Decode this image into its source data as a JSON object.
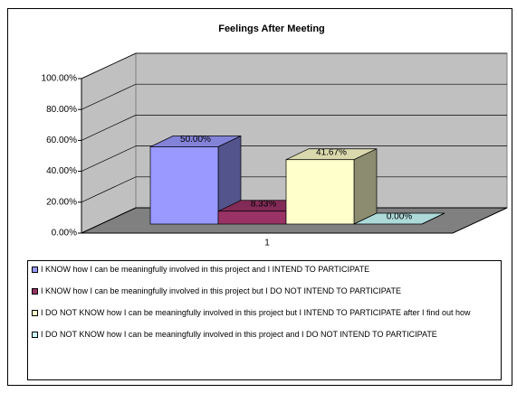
{
  "chart_data": {
    "type": "bar3d",
    "title": "Feelings After Meeting",
    "categories": [
      "1"
    ],
    "series": [
      {
        "name": "I KNOW how I can be meaningfully involved in this project and I INTEND TO PARTICIPATE",
        "color": "#9999ff",
        "values": [
          50
        ],
        "value_labels": [
          "50.00%"
        ]
      },
      {
        "name": "I KNOW how I can be meaningfully involved in this project but I DO NOT INTEND TO PARTICIPATE",
        "color": "#993366",
        "values": [
          8.33
        ],
        "value_labels": [
          "8.33%"
        ]
      },
      {
        "name": "I DO NOT KNOW how I can be meaningfully involved in this project but I INTEND TO PARTICIPATE after I find out how",
        "color": "#ffffcc",
        "values": [
          41.67
        ],
        "value_labels": [
          "41.67%"
        ]
      },
      {
        "name": "I DO NOT KNOW how I can be meaningfully involved in this project and I DO NOT INTEND TO PARTICIPATE",
        "color": "#ccffff",
        "values": [
          0
        ],
        "value_labels": [
          "0.00%"
        ]
      }
    ],
    "ylim": [
      0,
      100
    ],
    "yticks": [
      {
        "value": 0,
        "label": "0.00%"
      },
      {
        "value": 20,
        "label": "20.00%"
      },
      {
        "value": 40,
        "label": "40.00%"
      },
      {
        "value": 60,
        "label": "60.00%"
      },
      {
        "value": 80,
        "label": "80.00%"
      },
      {
        "value": 100,
        "label": "100.00%"
      }
    ],
    "grid": true,
    "legend": "bottom"
  }
}
